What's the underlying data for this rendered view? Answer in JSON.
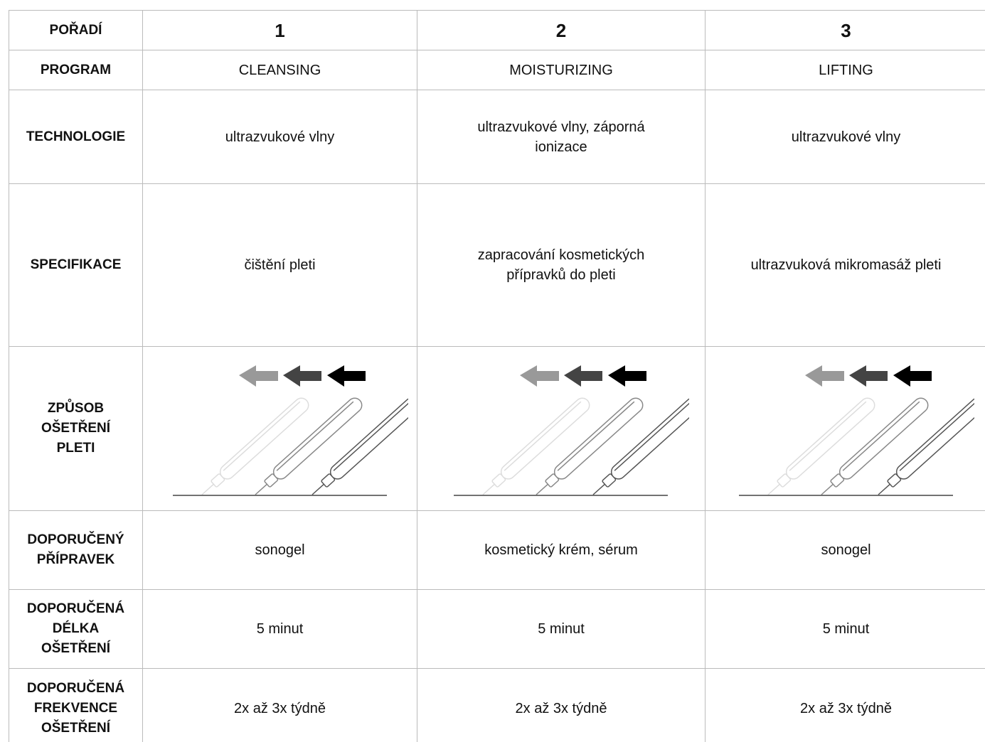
{
  "table": {
    "rows": [
      {
        "header": [
          "POŘADÍ"
        ],
        "cells": [
          [
            "1"
          ],
          [
            "2"
          ],
          [
            "3"
          ]
        ]
      },
      {
        "header": [
          "PROGRAM"
        ],
        "cells": [
          [
            "CLEANSING"
          ],
          [
            "MOISTURIZING"
          ],
          [
            "LIFTING"
          ]
        ]
      },
      {
        "header": [
          "TECHNOLOGIE"
        ],
        "cells": [
          [
            "ultrazvukové vlny"
          ],
          [
            "ultrazvukové vlny, záporná",
            "ionizace"
          ],
          [
            "ultrazvukové vlny"
          ]
        ]
      },
      {
        "header": [
          "SPECIFIKACE"
        ],
        "cells": [
          [
            "čištění pleti"
          ],
          [
            "zapracování kosmetických",
            "přípravků do pleti"
          ],
          [
            "ultrazvuková mikromasáž pleti"
          ]
        ]
      },
      {
        "header": [
          "ZPŮSOB",
          "OŠETŘENÍ",
          "PLETI"
        ]
      },
      {
        "header": [
          "DOPORUČENÝ",
          "PŘÍPRAVEK"
        ],
        "cells": [
          [
            "sonogel"
          ],
          [
            "kosmetický krém, sérum"
          ],
          [
            "sonogel"
          ]
        ]
      },
      {
        "header": [
          "DOPORUČENÁ",
          "DÉLKA",
          "OŠETŘENÍ"
        ],
        "cells": [
          [
            "5 minut"
          ],
          [
            "5 minut"
          ],
          [
            "5 minut"
          ]
        ]
      },
      {
        "header": [
          "DOPORUČENÁ",
          "FREKVENCE",
          "OŠETŘENÍ"
        ],
        "cells": [
          [
            "2x až 3x týdně"
          ],
          [
            "2x až 3x týdně"
          ],
          [
            "2x až 3x týdně"
          ]
        ]
      }
    ]
  }
}
